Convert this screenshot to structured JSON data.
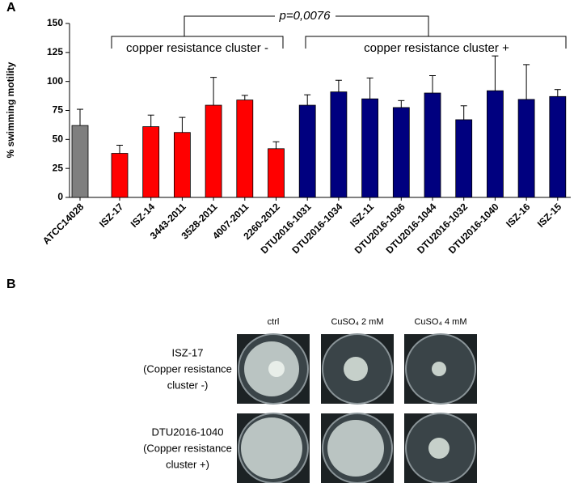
{
  "chart_data": {
    "type": "bar",
    "panel_label": "A",
    "ylabel": "% swimming motility",
    "categories": [
      "ATCC14028",
      "ISZ-17",
      "ISZ-14",
      "3443-2011",
      "3528-2011",
      "4007-2011",
      "2260-2012",
      "DTU2016-1031",
      "DTU2016-1034",
      "ISZ-11",
      "DTU2016-1036",
      "DTU2016-1044",
      "DTU2016-1032",
      "DTU2016-1040",
      "ISZ-16",
      "ISZ-15"
    ],
    "values": [
      62,
      38,
      61,
      56,
      79.5,
      84,
      42,
      79.5,
      91,
      85,
      77.5,
      90,
      67,
      92,
      84.5,
      87
    ],
    "errors": [
      14,
      7,
      10,
      13,
      24,
      4,
      6,
      9,
      10,
      18,
      6,
      15,
      12,
      30,
      30,
      6
    ],
    "colors": [
      "#7f7f7f",
      "#ff0000",
      "#ff0000",
      "#ff0000",
      "#ff0000",
      "#ff0000",
      "#ff0000",
      "#00007f",
      "#00007f",
      "#00007f",
      "#00007f",
      "#00007f",
      "#00007f",
      "#00007f",
      "#00007f",
      "#00007f"
    ],
    "ylim": [
      0,
      150
    ],
    "yticks": [
      0,
      25,
      50,
      75,
      100,
      125,
      150
    ],
    "annotations": [
      "p=0,0076",
      "copper resistance cluster -",
      "copper resistance cluster +"
    ]
  },
  "panel_b": {
    "label": "B",
    "columns": [
      "ctrl",
      "CuSO₄ 2 mM",
      "CuSO₄ 4 mM"
    ],
    "rows": [
      [
        "ISZ-17",
        "(Copper resistance",
        "cluster -)"
      ],
      [
        "DTU2016-1040",
        "(Copper resistance",
        "cluster +)"
      ]
    ]
  }
}
